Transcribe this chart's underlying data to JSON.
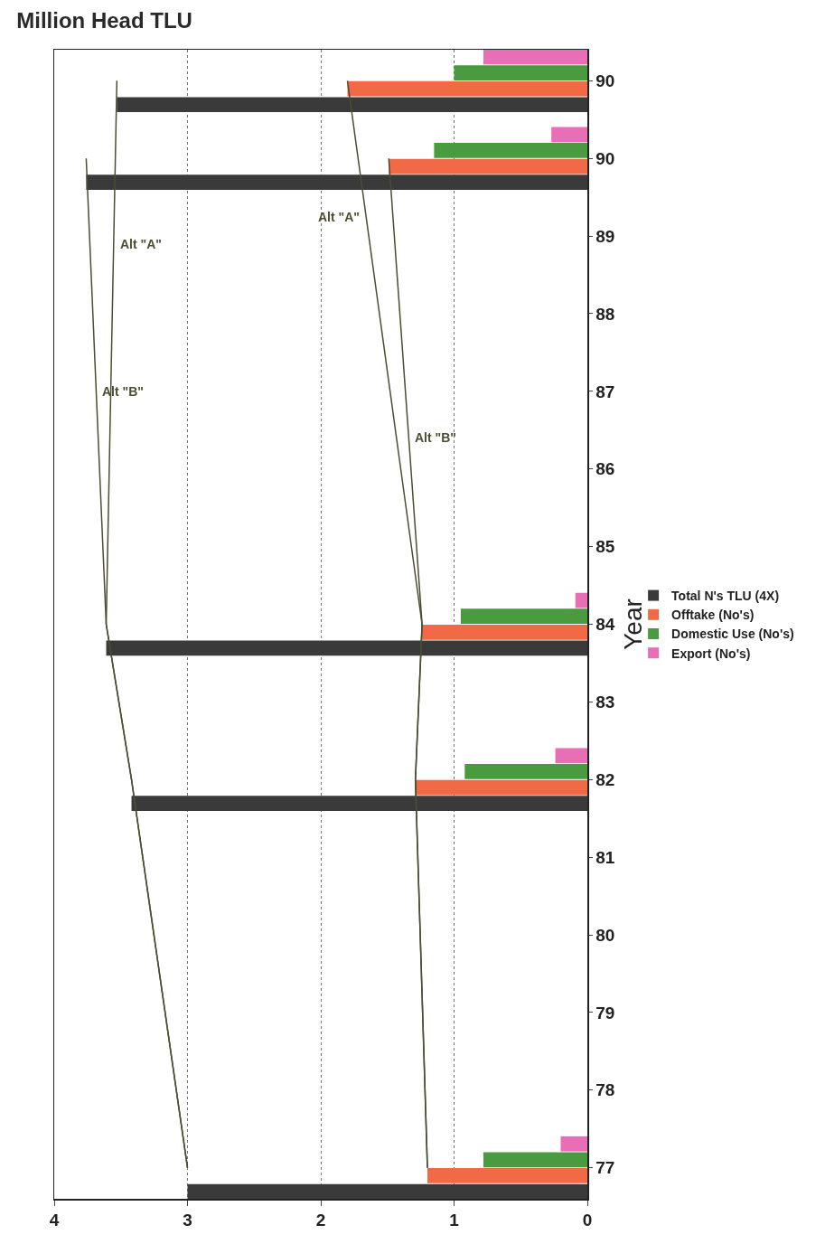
{
  "chart_data": {
    "type": "bar",
    "orientation": "horizontal",
    "title": "Million Head TLU",
    "ylabel": "Year",
    "categories": [
      "90",
      "90",
      "89",
      "88",
      "87",
      "86",
      "85",
      "84",
      "83",
      "82",
      "81",
      "80",
      "79",
      "78",
      "77"
    ],
    "series": [
      {
        "name": "Total N's TLU (4X)",
        "color": "#3a3a3a",
        "values": [
          3.53,
          3.76,
          null,
          null,
          null,
          null,
          null,
          3.61,
          null,
          3.42,
          null,
          null,
          null,
          null,
          3.0
        ]
      },
      {
        "name": "Offtake (No's)",
        "color": "#f26a45",
        "values": [
          1.8,
          1.49,
          null,
          null,
          null,
          null,
          null,
          1.24,
          null,
          1.29,
          null,
          null,
          null,
          null,
          1.2
        ]
      },
      {
        "name": "Domestic Use (No's)",
        "color": "#4a9a40",
        "values": [
          1.0,
          1.15,
          null,
          null,
          null,
          null,
          null,
          0.95,
          null,
          0.92,
          null,
          null,
          null,
          null,
          0.78
        ]
      },
      {
        "name": "Export (No's)",
        "color": "#e86fb5",
        "values": [
          0.78,
          0.27,
          null,
          null,
          null,
          null,
          null,
          0.09,
          null,
          0.24,
          null,
          null,
          null,
          null,
          0.2
        ]
      },
      {
        "type": "line",
        "name": "Alt \"B\"",
        "color": "#4d4d33",
        "values": [
          null,
          3.76,
          null,
          null,
          null,
          null,
          null,
          3.61,
          null,
          3.42,
          null,
          null,
          null,
          null,
          3.0
        ]
      },
      {
        "type": "line",
        "name": "Alt \"A\"",
        "color": "#4d4d33",
        "values": [
          3.53,
          null,
          null,
          null,
          null,
          null,
          null,
          3.61,
          null,
          3.42,
          null,
          null,
          null,
          null,
          3.0
        ]
      },
      {
        "type": "line",
        "name": "Alt \"B\"",
        "color": "#4d4d33",
        "values": [
          null,
          1.49,
          null,
          null,
          null,
          null,
          null,
          1.24,
          null,
          1.29,
          null,
          null,
          null,
          null,
          1.2
        ]
      },
      {
        "type": "line",
        "name": "Alt \"A\"",
        "color": "#4d4d33",
        "values": [
          1.8,
          null,
          null,
          null,
          null,
          null,
          null,
          1.24,
          null,
          1.29,
          null,
          null,
          null,
          null,
          1.2
        ]
      }
    ],
    "xlim": [
      4,
      0
    ],
    "xticks": [
      0,
      1,
      2,
      3,
      4
    ],
    "grid": "x",
    "legend": "right",
    "line_style": "solid"
  }
}
